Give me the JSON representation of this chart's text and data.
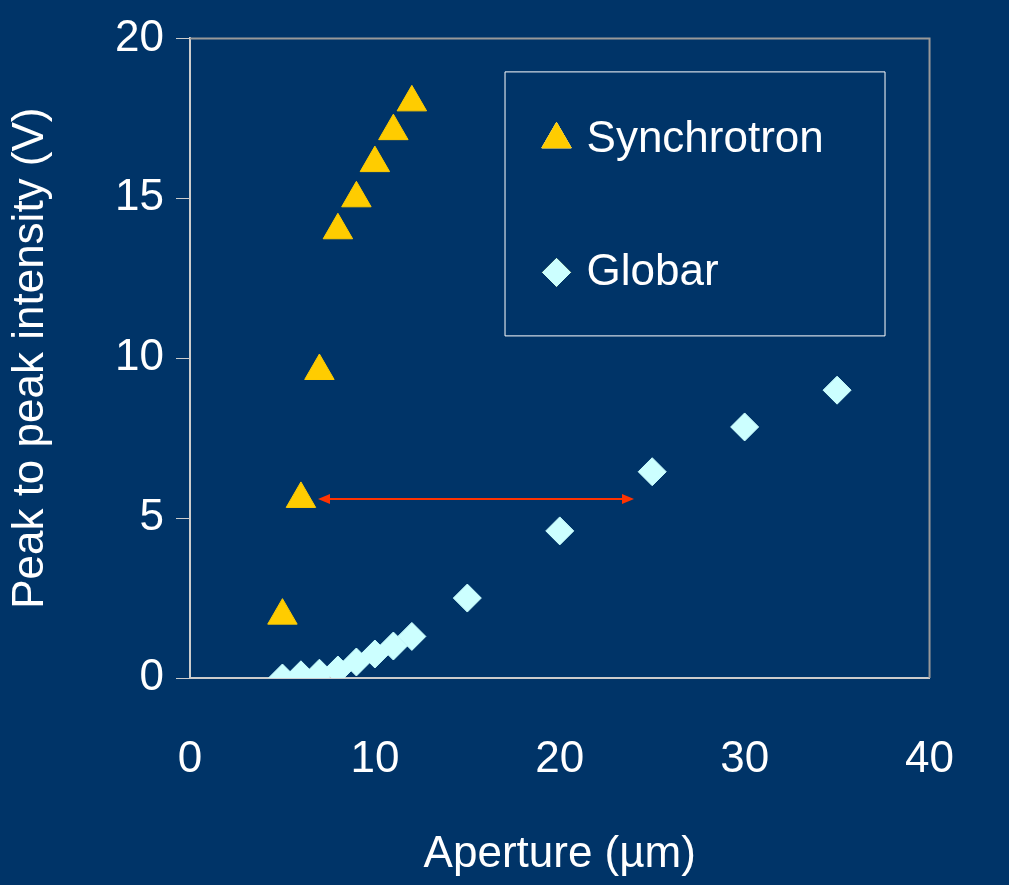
{
  "chart_data": {
    "type": "scatter",
    "xlabel": "Aperture (µm)",
    "ylabel": "Peak to peak intensity (V)",
    "xlim": [
      0,
      40
    ],
    "xticks": [
      0,
      10,
      20,
      30,
      40
    ],
    "ylim": [
      0,
      20
    ],
    "yticks": [
      0,
      5,
      10,
      15,
      20
    ],
    "grid": false,
    "legend": "top right",
    "series": [
      {
        "name": "Synchrotron",
        "color": "#ffcc00",
        "marker": "triangle",
        "x": [
          5,
          6,
          7,
          8,
          9,
          10,
          11,
          12
        ],
        "values": [
          1.95,
          5.6,
          9.6,
          14.0,
          15.0,
          16.1,
          17.1,
          18.0
        ]
      },
      {
        "name": "Globar",
        "color": "#ccffff",
        "marker": "diamond",
        "x": [
          5,
          6,
          7,
          8,
          9,
          10,
          11,
          12,
          15,
          20,
          25,
          30,
          35
        ],
        "values": [
          0,
          0.1,
          0.15,
          0.25,
          0.5,
          0.75,
          1.0,
          1.3,
          2.5,
          4.6,
          6.45,
          7.85,
          9.0
        ]
      }
    ]
  }
}
